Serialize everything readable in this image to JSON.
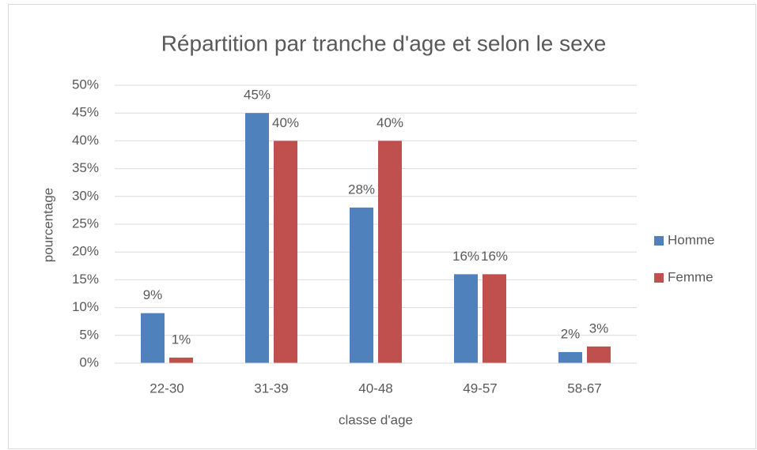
{
  "chart_data": {
    "type": "bar",
    "title": "Répartition par tranche d'age et selon le sexe",
    "x_label": "classe d'age",
    "y_label": "pourcentage",
    "categories": [
      "22-30",
      "31-39",
      "40-48",
      "49-57",
      "58-67"
    ],
    "series": [
      {
        "name": "Homme",
        "color": "#4f81bd",
        "values": [
          9,
          45,
          28,
          16,
          2
        ],
        "value_labels": [
          "9%",
          "45%",
          "28%",
          "16%",
          "2%"
        ]
      },
      {
        "name": "Femme",
        "color": "#c0504d",
        "values": [
          1,
          40,
          40,
          16,
          3
        ],
        "value_labels": [
          "1%",
          "40%",
          "40%",
          "16%",
          "3%"
        ]
      }
    ],
    "ylim": [
      0,
      50
    ],
    "yticks": [
      {
        "value": 0,
        "label": "0%"
      },
      {
        "value": 5,
        "label": "5%"
      },
      {
        "value": 10,
        "label": "10%"
      },
      {
        "value": 15,
        "label": "15%"
      },
      {
        "value": 20,
        "label": "20%"
      },
      {
        "value": 25,
        "label": "25%"
      },
      {
        "value": 30,
        "label": "30%"
      },
      {
        "value": 35,
        "label": "35%"
      },
      {
        "value": 40,
        "label": "40%"
      },
      {
        "value": 45,
        "label": "45%"
      },
      {
        "value": 50,
        "label": "50%"
      }
    ],
    "grid": true,
    "legend": "right"
  }
}
